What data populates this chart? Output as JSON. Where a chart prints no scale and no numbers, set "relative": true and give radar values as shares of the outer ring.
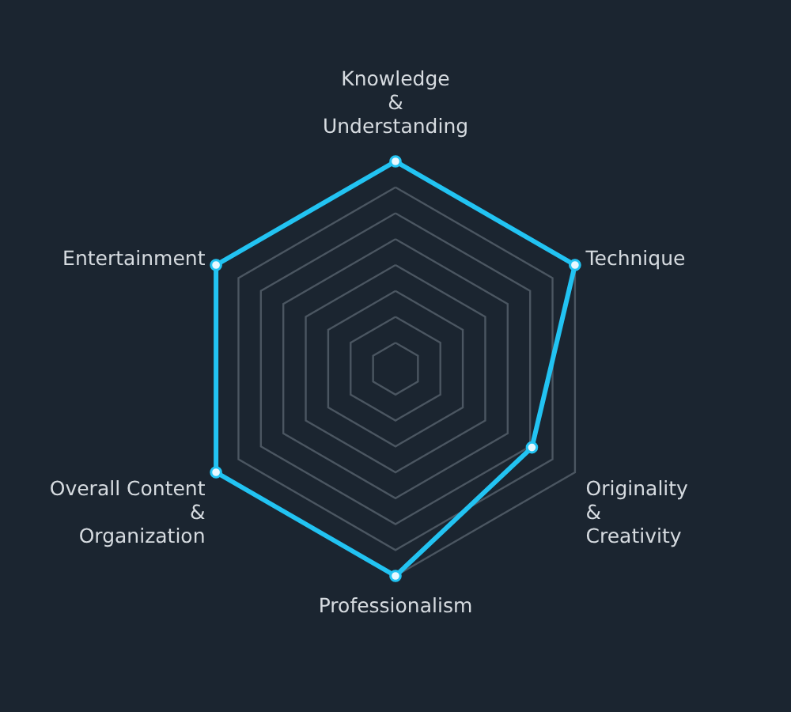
{
  "chart_data": {
    "type": "radar",
    "relative": true,
    "categories": [
      "Knowledge\n&\nUnderstanding",
      "Technique",
      "Originality\n&\nCreativity",
      "Professionalism",
      "Overall Content\n&\nOrganization",
      "Entertainment"
    ],
    "series": [
      {
        "color": "#22c3f2",
        "values": [
          1,
          1,
          0.76,
          1,
          1,
          1
        ]
      }
    ],
    "grid": true,
    "marker": "circle",
    "line_style": "solid"
  }
}
